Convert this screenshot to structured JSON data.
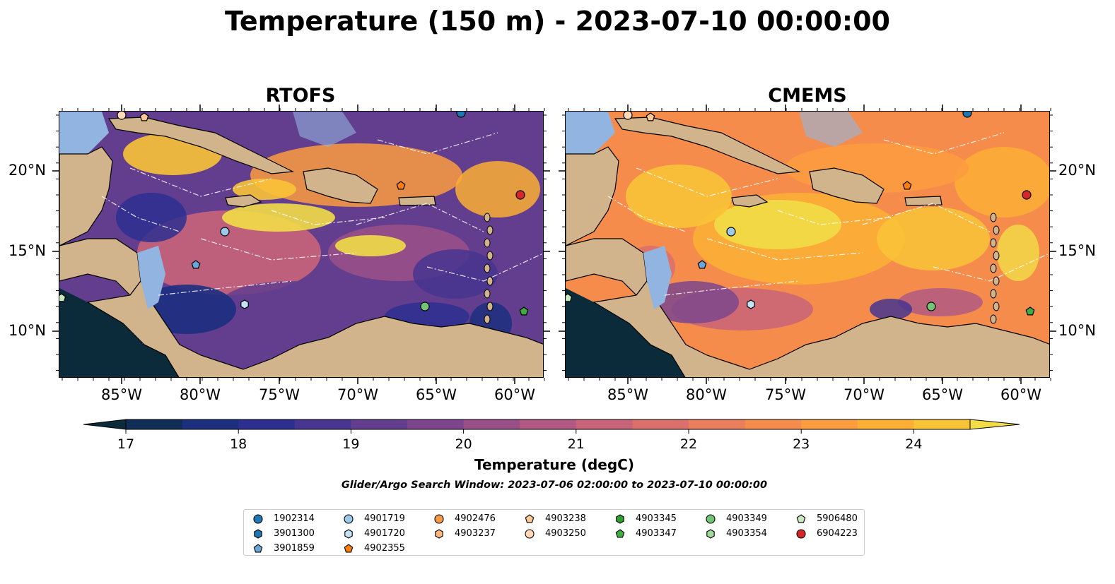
{
  "title": "Temperature (150 m) - 2023-07-10 00:00:00",
  "panels": [
    {
      "title": "RTOFS",
      "scheme": "rtofs"
    },
    {
      "title": "CMEMS",
      "scheme": "cmems"
    }
  ],
  "lon_ticks": [
    "85°W",
    "80°W",
    "75°W",
    "70°W",
    "65°W",
    "60°W"
  ],
  "lat_ticks": [
    "20°N",
    "15°N",
    "10°N"
  ],
  "colorbar": {
    "min": 17,
    "max": 24.5,
    "step": 0.5,
    "tick_labels": [
      "17",
      "18",
      "19",
      "20",
      "21",
      "22",
      "23",
      "24"
    ],
    "label": "Temperature (degC)",
    "colors": [
      "#0b2a3a",
      "#102d55",
      "#1c2f7f",
      "#2d2f90",
      "#47358f",
      "#633d8e",
      "#7d468c",
      "#984f88",
      "#b25983",
      "#c8647a",
      "#db6f6c",
      "#ea7d5c",
      "#f58c4c",
      "#fb9c3f",
      "#fcae35",
      "#f9c337",
      "#f2dd47"
    ],
    "extend": "both"
  },
  "search_window": "Glider/Argo Search Window: 2023-07-06 02:00:00 to 2023-07-10 00:00:00",
  "legend": [
    {
      "id": "1902314",
      "color": "#1f77b4",
      "marker": "circle"
    },
    {
      "id": "3901300",
      "color": "#1f77b4",
      "marker": "hexagon"
    },
    {
      "id": "3901859",
      "color": "#6aa7d8",
      "marker": "pentagon"
    },
    {
      "id": "4901719",
      "color": "#9ecae9",
      "marker": "circle"
    },
    {
      "id": "4901720",
      "color": "#c6e2f5",
      "marker": "hexagon"
    },
    {
      "id": "4902355",
      "color": "#ff7f0e",
      "marker": "pentagon"
    },
    {
      "id": "4902476",
      "color": "#fd9a45",
      "marker": "circle"
    },
    {
      "id": "4903237",
      "color": "#fdb77a",
      "marker": "hexagon"
    },
    {
      "id": "4903238",
      "color": "#fdc896",
      "marker": "pentagon"
    },
    {
      "id": "4903250",
      "color": "#ffd9b8",
      "marker": "circle"
    },
    {
      "id": "4903345",
      "color": "#2ca02c",
      "marker": "hexagon"
    },
    {
      "id": "4903347",
      "color": "#3fae3f",
      "marker": "pentagon"
    },
    {
      "id": "4903349",
      "color": "#74c476",
      "marker": "circle"
    },
    {
      "id": "4903354",
      "color": "#a1d99b",
      "marker": "hexagon"
    },
    {
      "id": "5906480",
      "color": "#c7e9c0",
      "marker": "pentagon"
    },
    {
      "id": "6904223",
      "color": "#d62728",
      "marker": "circle"
    }
  ],
  "colors": {
    "land": "#d2b48c",
    "shelf": "#92b4e0",
    "deep_ocean": "#0b2a3a"
  }
}
